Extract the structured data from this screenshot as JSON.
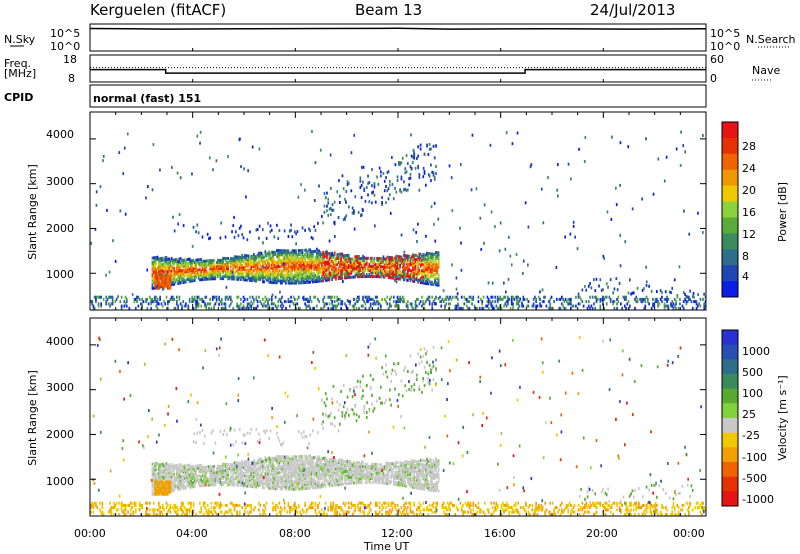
{
  "header": {
    "station": "Kerguelen (fitACF)",
    "beam": "Beam 13",
    "date": "24/Jul/2013"
  },
  "panels": {
    "nsky": {
      "label": "N.Sky",
      "ticks_left": [
        "10^5",
        "10^0"
      ],
      "right_label": "N.Search",
      "ticks_right": [
        "10^5",
        "10^0"
      ]
    },
    "freq": {
      "label": "Freq.",
      "unit": "[MHz]",
      "ticks_left": [
        "18",
        "8"
      ],
      "right_label": "Nave",
      "ticks_right": [
        "60",
        "0"
      ]
    },
    "cpid": {
      "label": "CPID",
      "value": "normal (fast) 151"
    }
  },
  "colors": {
    "power_scale": [
      "#0a1ee6",
      "#1e46b4",
      "#2f6e8a",
      "#3c8a60",
      "#5aac3a",
      "#8cd23c",
      "#f0c800",
      "#f09600",
      "#f06400",
      "#e63200",
      "#e61414"
    ],
    "velocity_scale": [
      "#2832d2",
      "#2850b4",
      "#2f6e8a",
      "#3c8a5a",
      "#5aaa32",
      "#82d23c",
      "#c8c8c8",
      "#f0c800",
      "#f0a000",
      "#f06400",
      "#e63200",
      "#e61414"
    ]
  },
  "chart_data": [
    {
      "type": "line",
      "name": "nsky-panel",
      "series": [
        {
          "name": "N.Sky",
          "x_hours": [
            0,
            3,
            6,
            9,
            12,
            14,
            18,
            21,
            24
          ],
          "values_log10": [
            4.9,
            4.8,
            4.85,
            4.9,
            4.95,
            4.8,
            4.85,
            4.8,
            4.85
          ]
        }
      ]
    },
    {
      "type": "line",
      "name": "frequency-panel",
      "series": [
        {
          "name": "Freq.",
          "x_hours": [
            0,
            2.95,
            2.95,
            16.95,
            16.95,
            24
          ],
          "values": [
            12.6,
            12.6,
            11.3,
            11.3,
            12.6,
            12.6
          ]
        },
        {
          "name": "Nave",
          "x_hours": [
            0,
            24
          ],
          "values": [
            32,
            32
          ]
        }
      ],
      "ylim_freq": [
        8,
        18
      ],
      "ylim_nave": [
        0,
        60
      ]
    },
    {
      "type": "heatmap",
      "name": "power-panel",
      "ylabel": "Slant Range [km]",
      "colorbar_label": "Power [dB]",
      "colorbar_ticks": [
        "28",
        "24",
        "20",
        "16",
        "12",
        "8",
        "4"
      ],
      "yticks": [
        "4000",
        "3000",
        "2000",
        "1000"
      ],
      "ylim_km": [
        180,
        4600
      ],
      "xlim_hours": [
        0,
        24
      ]
    },
    {
      "type": "heatmap",
      "name": "velocity-panel",
      "ylabel": "Slant Range [km]",
      "colorbar_label": "Velocity [m s⁻¹]",
      "colorbar_ticks": [
        "1000",
        "500",
        "100",
        "25",
        "-25",
        "-100",
        "-500",
        "-1000"
      ],
      "yticks": [
        "4000",
        "3000",
        "2000",
        "1000"
      ],
      "ylim_km": [
        180,
        4600
      ],
      "xlim_hours": [
        0,
        24
      ]
    }
  ],
  "xaxis": {
    "label": "Time UT",
    "ticks": [
      "00:00",
      "04:00",
      "08:00",
      "12:00",
      "16:00",
      "20:00",
      "00:00"
    ]
  }
}
